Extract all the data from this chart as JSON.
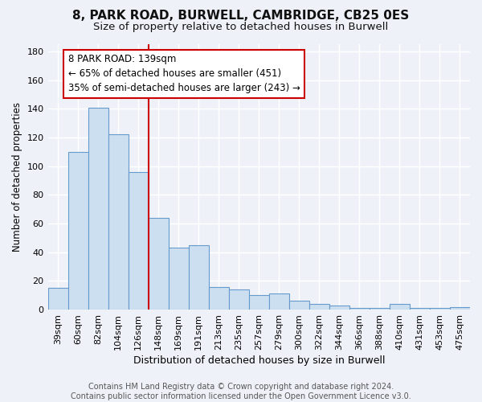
{
  "title": "8, PARK ROAD, BURWELL, CAMBRIDGE, CB25 0ES",
  "subtitle": "Size of property relative to detached houses in Burwell",
  "xlabel": "Distribution of detached houses by size in Burwell",
  "ylabel": "Number of detached properties",
  "categories": [
    "39sqm",
    "60sqm",
    "82sqm",
    "104sqm",
    "126sqm",
    "148sqm",
    "169sqm",
    "191sqm",
    "213sqm",
    "235sqm",
    "257sqm",
    "279sqm",
    "300sqm",
    "322sqm",
    "344sqm",
    "366sqm",
    "388sqm",
    "410sqm",
    "431sqm",
    "453sqm",
    "475sqm"
  ],
  "values": [
    15,
    110,
    141,
    122,
    96,
    64,
    43,
    45,
    16,
    14,
    10,
    11,
    6,
    4,
    3,
    1,
    1,
    4,
    1,
    1,
    2
  ],
  "bar_color": "#ccdff0",
  "bar_edge_color": "#6699cc",
  "highlight_index": 4,
  "highlight_color_red": "#cc0000",
  "annotation_line1": "8 PARK ROAD: 139sqm",
  "annotation_line2": "← 65% of detached houses are smaller (451)",
  "annotation_line3": "35% of semi-detached houses are larger (243) →",
  "annotation_box_facecolor": "#ffffff",
  "annotation_box_edgecolor": "#cc0000",
  "ylim": [
    0,
    185
  ],
  "yticks": [
    0,
    20,
    40,
    60,
    80,
    100,
    120,
    140,
    160,
    180
  ],
  "footer_text": "Contains HM Land Registry data © Crown copyright and database right 2024.\nContains public sector information licensed under the Open Government Licence v3.0.",
  "background_color": "#eef2f8",
  "plot_bg_color": "#eef2f8",
  "grid_color": "#ffffff",
  "title_fontsize": 11,
  "subtitle_fontsize": 9.5,
  "xlabel_fontsize": 9,
  "ylabel_fontsize": 8.5,
  "tick_fontsize": 8,
  "annotation_fontsize": 8.5,
  "footer_fontsize": 7
}
